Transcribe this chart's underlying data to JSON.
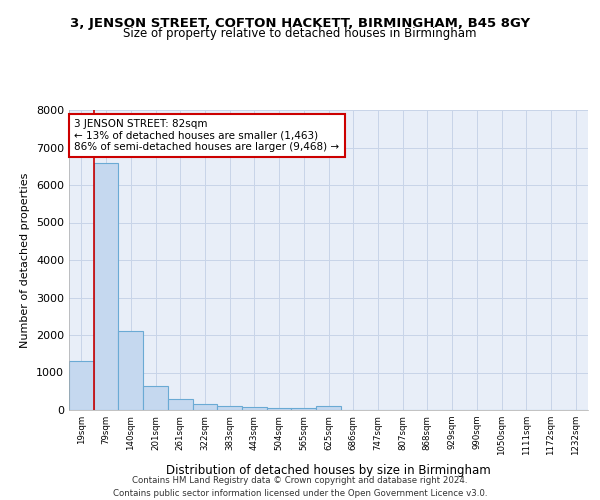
{
  "title_line1": "3, JENSON STREET, COFTON HACKETT, BIRMINGHAM, B45 8GY",
  "title_line2": "Size of property relative to detached houses in Birmingham",
  "xlabel": "Distribution of detached houses by size in Birmingham",
  "ylabel": "Number of detached properties",
  "footer": "Contains HM Land Registry data © Crown copyright and database right 2024.\nContains public sector information licensed under the Open Government Licence v3.0.",
  "categories": [
    "19sqm",
    "79sqm",
    "140sqm",
    "201sqm",
    "261sqm",
    "322sqm",
    "383sqm",
    "443sqm",
    "504sqm",
    "565sqm",
    "625sqm",
    "686sqm",
    "747sqm",
    "807sqm",
    "868sqm",
    "929sqm",
    "990sqm",
    "1050sqm",
    "1111sqm",
    "1172sqm",
    "1232sqm"
  ],
  "values": [
    1320,
    6600,
    2100,
    650,
    300,
    150,
    100,
    70,
    50,
    50,
    100,
    0,
    0,
    0,
    0,
    0,
    0,
    0,
    0,
    0,
    0
  ],
  "bar_color": "#c5d8ef",
  "bar_edge_color": "#6aaad4",
  "vline_color": "#cc0000",
  "annotation_text": "3 JENSON STREET: 82sqm\n← 13% of detached houses are smaller (1,463)\n86% of semi-detached houses are larger (9,468) →",
  "annotation_box_color": "white",
  "annotation_box_edge": "#cc0000",
  "ylim": [
    0,
    8000
  ],
  "yticks": [
    0,
    1000,
    2000,
    3000,
    4000,
    5000,
    6000,
    7000,
    8000
  ],
  "grid_color": "#c8d4e8",
  "bg_color": "#e8eef8"
}
